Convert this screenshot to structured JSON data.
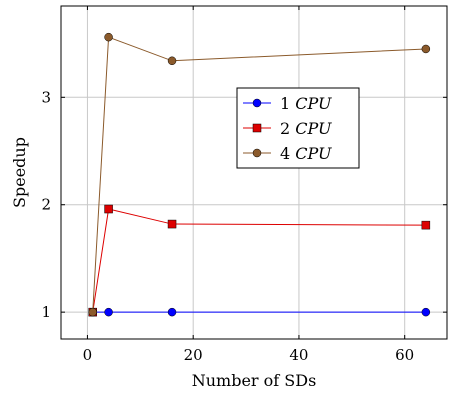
{
  "chart_data": {
    "type": "line",
    "xlabel": "Number of SDs",
    "ylabel": "Speedup",
    "xlim": [
      -5,
      68
    ],
    "ylim": [
      0.75,
      3.85
    ],
    "xticks": [
      0,
      20,
      40,
      60
    ],
    "yticks": [
      1,
      2,
      3
    ],
    "grid": true,
    "legend_position": "center-right",
    "x": [
      1,
      4,
      16,
      64
    ],
    "series": [
      {
        "name_prefix": "1",
        "name_suffix": "CPU",
        "name": "1 CPU",
        "color": "#0000ff",
        "marker": "circle",
        "values": [
          1.0,
          1.0,
          1.0,
          1.0
        ]
      },
      {
        "name_prefix": "2",
        "name_suffix": "CPU",
        "name": "2 CPU",
        "color": "#dd0000",
        "marker": "square",
        "values": [
          1.0,
          1.96,
          1.82,
          1.81
        ]
      },
      {
        "name_prefix": "4",
        "name_suffix": "CPU",
        "name": "4 CPU",
        "color": "#8b5a2b",
        "marker": "circle",
        "values": [
          1.0,
          3.56,
          3.34,
          3.45
        ]
      }
    ]
  }
}
